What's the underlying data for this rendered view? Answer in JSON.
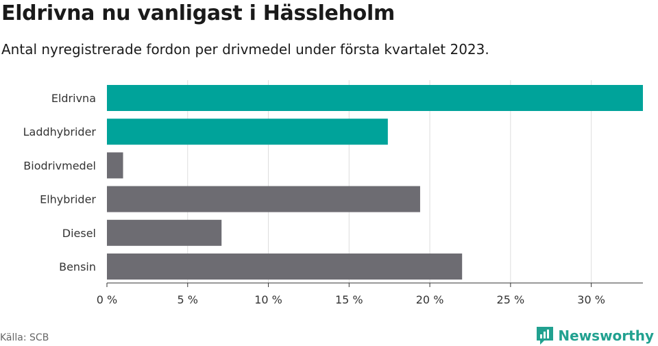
{
  "header": {
    "title": "Eldrivna nu vanligast i Hässleholm",
    "subtitle": "Antal nyregistrerade fordon per drivmedel under första kvartalet 2023."
  },
  "footer": {
    "source": "Källa: SCB",
    "brand": "Newsworthy",
    "brand_icon": "newsworthy-logo-icon",
    "brand_color": "#21a190"
  },
  "colors": {
    "highlight": "#00a39a",
    "default": "#6d6c72",
    "grid": "#dddddd",
    "axis": "#333333"
  },
  "chart_data": {
    "type": "bar",
    "orientation": "horizontal",
    "categories": [
      "Eldrivna",
      "Laddhybrider",
      "Biodrivmedel",
      "Elhybrider",
      "Diesel",
      "Bensin"
    ],
    "values": [
      33.2,
      17.4,
      1.0,
      19.4,
      7.1,
      22.0
    ],
    "highlighted": [
      true,
      true,
      false,
      false,
      false,
      false
    ],
    "unit": "%",
    "xlim": [
      0,
      33.2
    ],
    "xticks": [
      0,
      5,
      10,
      15,
      20,
      25,
      30
    ],
    "xtick_labels": [
      "0 %",
      "5 %",
      "10 %",
      "15 %",
      "20 %",
      "25 %",
      "30 %"
    ],
    "grid": true,
    "title": "Eldrivna nu vanligast i Hässleholm",
    "xlabel": "",
    "ylabel": ""
  }
}
